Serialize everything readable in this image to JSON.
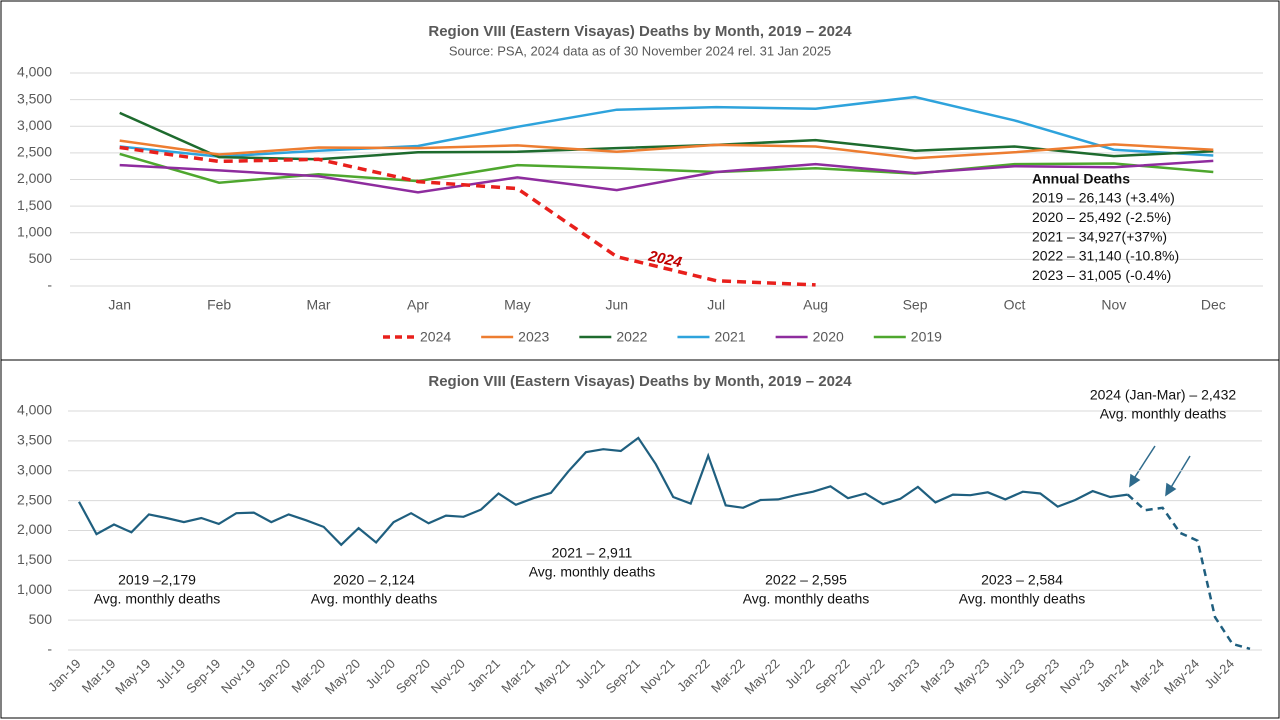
{
  "chart_data": [
    {
      "type": "line",
      "title": "Region VIII (Eastern Visayas) Deaths by Month, 2019 – 2024",
      "subtitle": "Source: PSA, 2024 data as of 30 November 2024 rel. 31 Jan 2025",
      "categories": [
        "Jan",
        "Feb",
        "Mar",
        "Apr",
        "May",
        "Jun",
        "Jul",
        "Aug",
        "Sep",
        "Oct",
        "Nov",
        "Dec"
      ],
      "series": [
        {
          "name": "2024",
          "color": "#e8201c",
          "dashed": true,
          "values": [
            2600,
            2340,
            2380,
            1960,
            1830,
            550,
            100,
            20,
            null,
            null,
            null,
            null
          ]
        },
        {
          "name": "2023",
          "color": "#ed7d31",
          "values": [
            2730,
            2470,
            2600,
            2590,
            2640,
            2520,
            2650,
            2620,
            2400,
            2510,
            2660,
            2560
          ]
        },
        {
          "name": "2022",
          "color": "#1e6b2e",
          "values": [
            3250,
            2420,
            2380,
            2510,
            2520,
            2590,
            2650,
            2740,
            2540,
            2620,
            2440,
            2530
          ]
        },
        {
          "name": "2021",
          "color": "#2ea3dc",
          "values": [
            2620,
            2430,
            2540,
            2630,
            2990,
            3310,
            3360,
            3330,
            3550,
            3110,
            2560,
            2450
          ]
        },
        {
          "name": "2020",
          "color": "#8e2c9e",
          "values": [
            2270,
            2170,
            2060,
            1760,
            2040,
            1800,
            2140,
            2290,
            2120,
            2250,
            2230,
            2350
          ]
        },
        {
          "name": "2019",
          "color": "#4ea72e",
          "values": [
            2480,
            1940,
            2100,
            1970,
            2270,
            2210,
            2140,
            2210,
            2110,
            2290,
            2300,
            2140
          ]
        }
      ],
      "ylim": [
        0,
        4000
      ],
      "yticks": [
        {
          "value": 0,
          "label": "-"
        },
        500,
        {
          "value": 1000,
          "label": "1,000"
        },
        {
          "value": 1500,
          "label": "1,500"
        },
        {
          "value": 2000,
          "label": "2,000"
        },
        {
          "value": 2500,
          "label": "2,500"
        },
        {
          "value": 3000,
          "label": "3,000"
        },
        {
          "value": 3500,
          "label": "3,500"
        },
        {
          "value": 4000,
          "label": "4,000"
        }
      ],
      "grid": true,
      "legend": "bottom",
      "series_label": "2024",
      "annual_deaths": {
        "title": "Annual Deaths",
        "lines": [
          "2019 – 26,143 (+3.4%)",
          "2020 – 25,492 (-2.5%)",
          "2021 – 34,927(+37%)",
          "2022 – 31,140 (-10.8%)",
          "2023 – 31,005 (-0.4%)"
        ]
      }
    },
    {
      "type": "line",
      "title": "Region VIII (Eastern Visayas) Deaths by Month, 2019 – 2024",
      "categories": [
        "Jan-19",
        null,
        "Mar-19",
        null,
        "May-19",
        null,
        "Jul-19",
        null,
        "Sep-19",
        null,
        "Nov-19",
        null,
        "Jan-20",
        null,
        "Mar-20",
        null,
        "May-20",
        null,
        "Jul-20",
        null,
        "Sep-20",
        null,
        "Nov-20",
        null,
        "Jan-21",
        null,
        "Mar-21",
        null,
        "May-21",
        null,
        "Jul-21",
        null,
        "Sep-21",
        null,
        "Nov-21",
        null,
        "Jan-22",
        null,
        "Mar-22",
        null,
        "May-22",
        null,
        "Jul-22",
        null,
        "Sep-22",
        null,
        "Nov-22",
        null,
        "Jan-23",
        null,
        "Mar-23",
        null,
        "May-23",
        null,
        "Jul-23",
        null,
        "Sep-23",
        null,
        "Nov-23",
        null,
        "Jan-24",
        null,
        "Mar-24",
        null,
        "May-24",
        null,
        "Jul-24",
        null
      ],
      "color": "#1f5f7f",
      "dashed_from": "Jan-24",
      "values": [
        2480,
        1940,
        2100,
        1970,
        2270,
        2210,
        2140,
        2210,
        2110,
        2290,
        2300,
        2140,
        2270,
        2170,
        2060,
        1760,
        2040,
        1800,
        2140,
        2290,
        2120,
        2250,
        2230,
        2350,
        2620,
        2430,
        2540,
        2630,
        2990,
        3310,
        3360,
        3330,
        3550,
        3110,
        2560,
        2450,
        3250,
        2420,
        2380,
        2510,
        2520,
        2590,
        2650,
        2740,
        2540,
        2620,
        2440,
        2530,
        2730,
        2470,
        2600,
        2590,
        2640,
        2520,
        2650,
        2620,
        2400,
        2510,
        2660,
        2560,
        2600,
        2340,
        2380,
        1960,
        1830,
        550,
        100,
        20
      ],
      "ylim": [
        0,
        4000
      ],
      "yticks": [
        {
          "value": 0,
          "label": "-"
        },
        500,
        {
          "value": 1000,
          "label": "1,000"
        },
        {
          "value": 1500,
          "label": "1,500"
        },
        {
          "value": 2000,
          "label": "2,000"
        },
        {
          "value": 2500,
          "label": "2,500"
        },
        {
          "value": 3000,
          "label": "3,000"
        },
        {
          "value": 3500,
          "label": "3,500"
        },
        {
          "value": 4000,
          "label": "4,000"
        }
      ],
      "grid": true,
      "annotations": [
        [
          "2019 –2,179",
          "Avg. monthly deaths"
        ],
        [
          "2020 – 2,124",
          "Avg. monthly deaths"
        ],
        [
          "2021 – 2,911",
          "Avg. monthly deaths"
        ],
        [
          "2022 – 2,595",
          "Avg. monthly deaths"
        ],
        [
          "2023 – 2,584",
          "Avg. monthly deaths"
        ],
        [
          "2024 (Jan-Mar) – 2,432",
          "Avg. monthly deaths"
        ]
      ]
    }
  ]
}
